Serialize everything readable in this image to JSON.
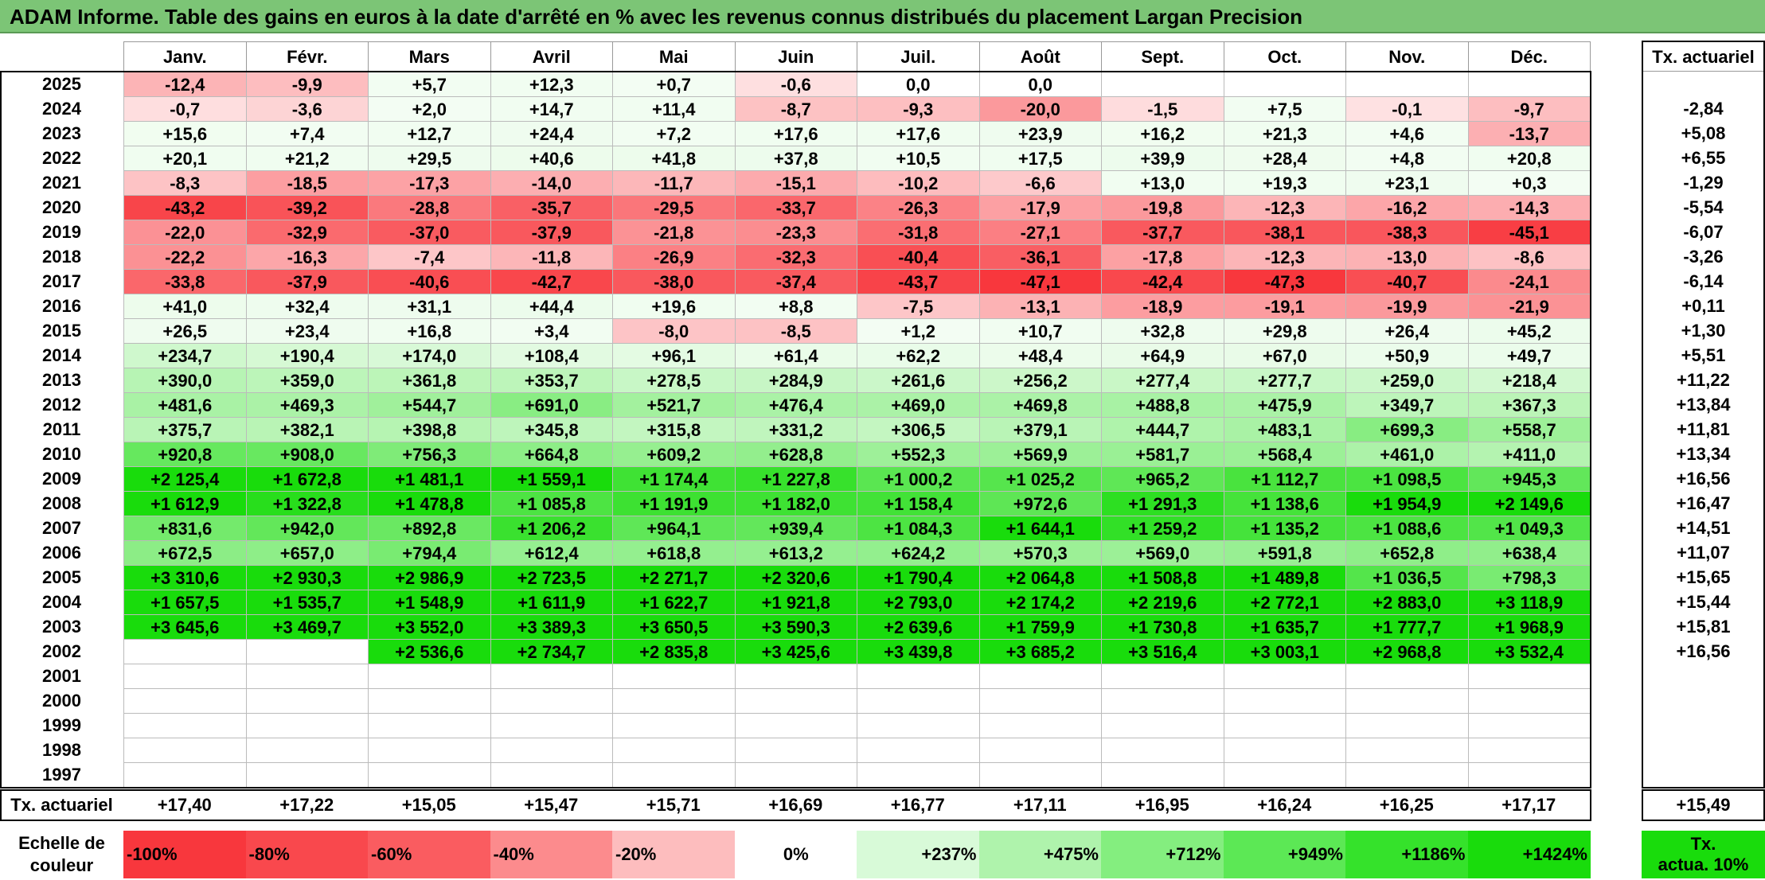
{
  "title": "ADAM Informe. Table des gains en euros à la date d'arrêté en % avec les revenus connus distribués du placement Largan Precision",
  "months": [
    "Janv.",
    "Févr.",
    "Mars",
    "Avril",
    "Mai",
    "Juin",
    "Juil.",
    "Août",
    "Sept.",
    "Oct.",
    "Nov.",
    "Déc."
  ],
  "tx_header": "Tx. actuariel",
  "rows": [
    {
      "year": "2025",
      "values": [
        "-12,4",
        "-9,9",
        "+5,7",
        "+12,3",
        "+0,7",
        "-0,6",
        "0,0",
        "0,0",
        "",
        "",
        "",
        ""
      ],
      "tx": ""
    },
    {
      "year": "2024",
      "values": [
        "-0,7",
        "-3,6",
        "+2,0",
        "+14,7",
        "+11,4",
        "-8,7",
        "-9,3",
        "-20,0",
        "-1,5",
        "+7,5",
        "-0,1",
        "-9,7"
      ],
      "tx": "-2,84"
    },
    {
      "year": "2023",
      "values": [
        "+15,6",
        "+7,4",
        "+12,7",
        "+24,4",
        "+7,2",
        "+17,6",
        "+17,6",
        "+23,9",
        "+16,2",
        "+21,3",
        "+4,6",
        "-13,7"
      ],
      "tx": "+5,08"
    },
    {
      "year": "2022",
      "values": [
        "+20,1",
        "+21,2",
        "+29,5",
        "+40,6",
        "+41,8",
        "+37,8",
        "+10,5",
        "+17,5",
        "+39,9",
        "+28,4",
        "+4,8",
        "+20,8"
      ],
      "tx": "+6,55"
    },
    {
      "year": "2021",
      "values": [
        "-8,3",
        "-18,5",
        "-17,3",
        "-14,0",
        "-11,7",
        "-15,1",
        "-10,2",
        "-6,6",
        "+13,0",
        "+19,3",
        "+23,1",
        "+0,3"
      ],
      "tx": "-1,29"
    },
    {
      "year": "2020",
      "values": [
        "-43,2",
        "-39,2",
        "-28,8",
        "-35,7",
        "-29,5",
        "-33,7",
        "-26,3",
        "-17,9",
        "-19,8",
        "-12,3",
        "-16,2",
        "-14,3"
      ],
      "tx": "-5,54"
    },
    {
      "year": "2019",
      "values": [
        "-22,0",
        "-32,9",
        "-37,0",
        "-37,9",
        "-21,8",
        "-23,3",
        "-31,8",
        "-27,1",
        "-37,7",
        "-38,1",
        "-38,3",
        "-45,1"
      ],
      "tx": "-6,07"
    },
    {
      "year": "2018",
      "values": [
        "-22,2",
        "-16,3",
        "-7,4",
        "-11,8",
        "-26,9",
        "-32,3",
        "-40,4",
        "-36,1",
        "-17,8",
        "-12,3",
        "-13,0",
        "-8,6"
      ],
      "tx": "-3,26"
    },
    {
      "year": "2017",
      "values": [
        "-33,8",
        "-37,9",
        "-40,6",
        "-42,7",
        "-38,0",
        "-37,4",
        "-43,7",
        "-47,1",
        "-42,4",
        "-47,3",
        "-40,7",
        "-24,1"
      ],
      "tx": "-6,14"
    },
    {
      "year": "2016",
      "values": [
        "+41,0",
        "+32,4",
        "+31,1",
        "+44,4",
        "+19,6",
        "+8,8",
        "-7,5",
        "-13,1",
        "-18,9",
        "-19,1",
        "-19,9",
        "-21,9"
      ],
      "tx": "+0,11"
    },
    {
      "year": "2015",
      "values": [
        "+26,5",
        "+23,4",
        "+16,8",
        "+3,4",
        "-8,0",
        "-8,5",
        "+1,2",
        "+10,7",
        "+32,8",
        "+29,8",
        "+26,4",
        "+45,2"
      ],
      "tx": "+1,30"
    },
    {
      "year": "2014",
      "values": [
        "+234,7",
        "+190,4",
        "+174,0",
        "+108,4",
        "+96,1",
        "+61,4",
        "+62,2",
        "+48,4",
        "+64,9",
        "+67,0",
        "+50,9",
        "+49,7"
      ],
      "tx": "+5,51"
    },
    {
      "year": "2013",
      "values": [
        "+390,0",
        "+359,0",
        "+361,8",
        "+353,7",
        "+278,5",
        "+284,9",
        "+261,6",
        "+256,2",
        "+277,4",
        "+277,7",
        "+259,0",
        "+218,4"
      ],
      "tx": "+11,22"
    },
    {
      "year": "2012",
      "values": [
        "+481,6",
        "+469,3",
        "+544,7",
        "+691,0",
        "+521,7",
        "+476,4",
        "+469,0",
        "+469,8",
        "+488,8",
        "+475,9",
        "+349,7",
        "+367,3"
      ],
      "tx": "+13,84"
    },
    {
      "year": "2011",
      "values": [
        "+375,7",
        "+382,1",
        "+398,8",
        "+345,8",
        "+315,8",
        "+331,2",
        "+306,5",
        "+379,1",
        "+444,7",
        "+483,1",
        "+699,3",
        "+558,7"
      ],
      "tx": "+11,81"
    },
    {
      "year": "2010",
      "values": [
        "+920,8",
        "+908,0",
        "+756,3",
        "+664,8",
        "+609,2",
        "+628,8",
        "+552,3",
        "+569,9",
        "+581,7",
        "+568,4",
        "+461,0",
        "+411,0"
      ],
      "tx": "+13,34"
    },
    {
      "year": "2009",
      "values": [
        "+2 125,4",
        "+1 672,8",
        "+1 481,1",
        "+1 559,1",
        "+1 174,4",
        "+1 227,8",
        "+1 000,2",
        "+1 025,2",
        "+965,2",
        "+1 112,7",
        "+1 098,5",
        "+945,3"
      ],
      "tx": "+16,56"
    },
    {
      "year": "2008",
      "values": [
        "+1 612,9",
        "+1 322,8",
        "+1 478,8",
        "+1 085,8",
        "+1 191,9",
        "+1 182,0",
        "+1 158,4",
        "+972,6",
        "+1 291,3",
        "+1 138,6",
        "+1 954,9",
        "+2 149,6"
      ],
      "tx": "+16,47"
    },
    {
      "year": "2007",
      "values": [
        "+831,6",
        "+942,0",
        "+892,8",
        "+1 206,2",
        "+964,1",
        "+939,4",
        "+1 084,3",
        "+1 644,1",
        "+1 259,2",
        "+1 135,2",
        "+1 088,6",
        "+1 049,3"
      ],
      "tx": "+14,51"
    },
    {
      "year": "2006",
      "values": [
        "+672,5",
        "+657,0",
        "+794,4",
        "+612,4",
        "+618,8",
        "+613,2",
        "+624,2",
        "+570,3",
        "+569,0",
        "+591,8",
        "+652,8",
        "+638,4"
      ],
      "tx": "+11,07"
    },
    {
      "year": "2005",
      "values": [
        "+3 310,6",
        "+2 930,3",
        "+2 986,9",
        "+2 723,5",
        "+2 271,7",
        "+2 320,6",
        "+1 790,4",
        "+2 064,8",
        "+1 508,8",
        "+1 489,8",
        "+1 036,5",
        "+798,3"
      ],
      "tx": "+15,65"
    },
    {
      "year": "2004",
      "values": [
        "+1 657,5",
        "+1 535,7",
        "+1 548,9",
        "+1 611,9",
        "+1 622,7",
        "+1 921,8",
        "+2 793,0",
        "+2 174,2",
        "+2 219,6",
        "+2 772,1",
        "+2 883,0",
        "+3 118,9"
      ],
      "tx": "+15,44"
    },
    {
      "year": "2003",
      "values": [
        "+3 645,6",
        "+3 469,7",
        "+3 552,0",
        "+3 389,3",
        "+3 650,5",
        "+3 590,3",
        "+2 639,6",
        "+1 759,9",
        "+1 730,8",
        "+1 635,7",
        "+1 777,7",
        "+1 968,9"
      ],
      "tx": "+15,81"
    },
    {
      "year": "2002",
      "values": [
        "",
        "",
        "+2 536,6",
        "+2 734,7",
        "+2 835,8",
        "+3 425,6",
        "+3 439,8",
        "+3 685,2",
        "+3 516,4",
        "+3 003,1",
        "+2 968,8",
        "+3 532,4"
      ],
      "tx": "+16,56"
    },
    {
      "year": "2001",
      "values": [
        "",
        "",
        "",
        "",
        "",
        "",
        "",
        "",
        "",
        "",
        "",
        ""
      ],
      "tx": ""
    },
    {
      "year": "2000",
      "values": [
        "",
        "",
        "",
        "",
        "",
        "",
        "",
        "",
        "",
        "",
        "",
        ""
      ],
      "tx": ""
    },
    {
      "year": "1999",
      "values": [
        "",
        "",
        "",
        "",
        "",
        "",
        "",
        "",
        "",
        "",
        "",
        ""
      ],
      "tx": ""
    },
    {
      "year": "1998",
      "values": [
        "",
        "",
        "",
        "",
        "",
        "",
        "",
        "",
        "",
        "",
        "",
        ""
      ],
      "tx": ""
    },
    {
      "year": "1997",
      "values": [
        "",
        "",
        "",
        "",
        "",
        "",
        "",
        "",
        "",
        "",
        "",
        ""
      ],
      "tx": ""
    }
  ],
  "summary": {
    "label": "Tx. actuariel",
    "values": [
      "+17,40",
      "+17,22",
      "+15,05",
      "+15,47",
      "+15,71",
      "+16,69",
      "+16,77",
      "+17,11",
      "+16,95",
      "+16,24",
      "+16,25",
      "+17,17"
    ],
    "total": "+15,49"
  },
  "legend": {
    "label_line1": "Echelle de",
    "label_line2": "couleur",
    "items": [
      {
        "text": "-100%",
        "color": "#f8373d"
      },
      {
        "text": "-80%",
        "color": "#f9484d"
      },
      {
        "text": "-60%",
        "color": "#fa5c60"
      },
      {
        "text": "-40%",
        "color": "#fc8b8d"
      },
      {
        "text": "-20%",
        "color": "#fdbdbe"
      },
      {
        "text": "0%",
        "color": "#ffffff"
      },
      {
        "text": "+237%",
        "color": "#d8fad8"
      },
      {
        "text": "+475%",
        "color": "#aff3ac"
      },
      {
        "text": "+712%",
        "color": "#84ee7f"
      },
      {
        "text": "+949%",
        "color": "#5ce855"
      },
      {
        "text": "+1186%",
        "color": "#35e22b"
      },
      {
        "text": "+1424%",
        "color": "#19dc0c"
      }
    ],
    "tx_line1": "Tx.",
    "tx_line2": "actua. 10%",
    "tx_color": "#19dc0c"
  },
  "colors": {
    "title_bg": "#7cc576",
    "neg_max": "#f8373d",
    "pos_max": "#19dc0c"
  }
}
